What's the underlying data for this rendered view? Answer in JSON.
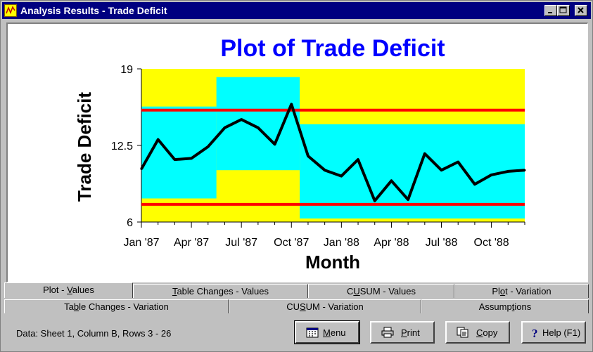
{
  "window": {
    "title": "Analysis Results - Trade Deficit",
    "controls": {
      "minimize": "_",
      "maximize": "□",
      "close": "×"
    }
  },
  "chart_data": {
    "type": "line",
    "title": "Plot of Trade Deficit",
    "xlabel": "Month",
    "ylabel": "Trade Deficit",
    "ylim": [
      6,
      19
    ],
    "y_ticks": [
      "6",
      "12.5",
      "19"
    ],
    "x_tick_labels": [
      "Jan '87",
      "Apr '87",
      "Jul '87",
      "Oct '87",
      "Jan '88",
      "Apr '88",
      "Jul '88",
      "Oct '88"
    ],
    "series": [
      {
        "values": [
          10.5,
          13.0,
          11.3,
          11.4,
          12.4,
          14.0,
          14.7,
          14.0,
          12.6,
          16.0,
          11.6,
          10.4,
          9.9,
          11.3,
          7.8,
          9.5,
          7.9,
          11.8,
          10.4,
          11.1,
          9.2,
          10.0,
          10.3,
          10.4
        ]
      }
    ],
    "control_limits": {
      "upper": 15.5,
      "lower": 7.5
    },
    "bands": [
      {
        "start": 0,
        "end": 4.5,
        "low": 8.0,
        "high": 15.8
      },
      {
        "start": 4.5,
        "end": 9.5,
        "low": 10.4,
        "high": 18.3
      },
      {
        "start": 9.5,
        "end": 23,
        "low": 6.3,
        "high": 14.3
      }
    ],
    "colors": {
      "background": "#ffff00",
      "band": "#00ffff",
      "line": "#000000",
      "limit": "#ff0000",
      "title": "#0000ff"
    }
  },
  "tabs": {
    "row1": [
      {
        "pre": "Plot - ",
        "ul": "V",
        "post": "alues",
        "active": true
      },
      {
        "pre": "",
        "ul": "T",
        "post": "able Changes - Values",
        "active": false
      },
      {
        "pre": "C",
        "ul": "U",
        "post": "SUM - Values",
        "active": false
      },
      {
        "pre": "Pl",
        "ul": "o",
        "post": "t - Variation",
        "active": false
      }
    ],
    "row2": [
      {
        "pre": "Ta",
        "ul": "b",
        "post": "le Changes - Variation",
        "active": false
      },
      {
        "pre": "CU",
        "ul": "S",
        "post": "UM - Variation",
        "active": false
      },
      {
        "pre": "Assump",
        "ul": "t",
        "post": "ions",
        "active": false
      }
    ]
  },
  "status": {
    "text": "Data: Sheet 1, Column B, Rows 3 - 26"
  },
  "buttons": {
    "menu": {
      "ul": "M",
      "post": "enu"
    },
    "print": {
      "ul": "P",
      "post": "rint"
    },
    "copy": {
      "ul": "C",
      "post": "opy"
    },
    "help": {
      "text": "Help (F1)"
    }
  }
}
